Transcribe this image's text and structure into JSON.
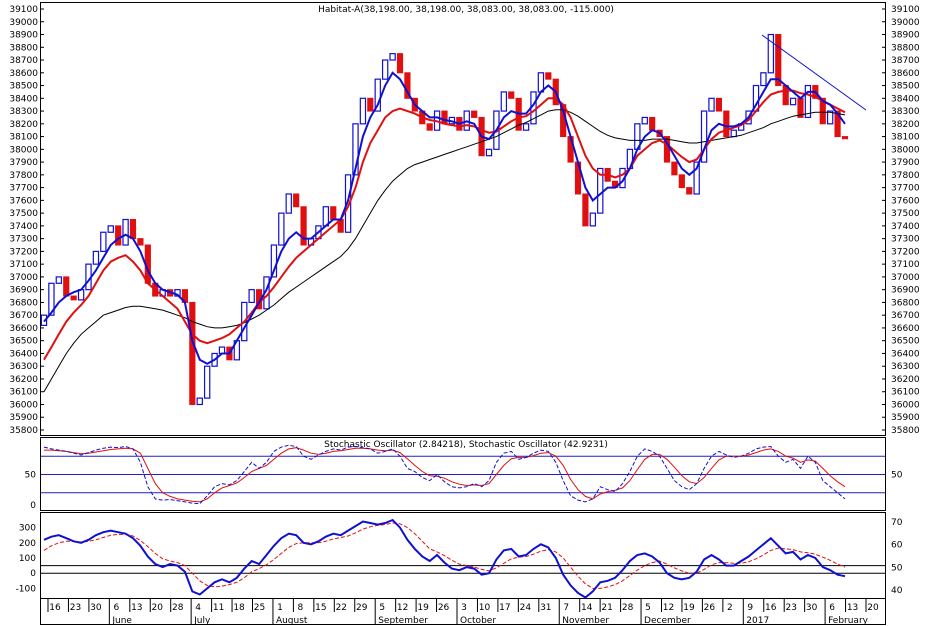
{
  "chart_data": {
    "type": "candlestick",
    "title": "Habitat-A(38,198.00, 38,198.00, 38,083.00, 38,083.00, -115.000)",
    "colors": {
      "up": "#1010d0",
      "down": "#e01010",
      "ma_fast": "#1010d0",
      "ma_mid": "#e01010",
      "ma_slow": "#000000",
      "stoch_fast": "#1010d0",
      "stoch_slow": "#e01010",
      "osc_main": "#1010d0",
      "osc_signal": "#e01010"
    },
    "price_panel": {
      "ylim": [
        35800,
        39100
      ],
      "y_ticks": [
        "39100",
        "39000",
        "38900",
        "38800",
        "38700",
        "38600",
        "38500",
        "38400",
        "38300",
        "38200",
        "38100",
        "38000",
        "37900",
        "37800",
        "37700",
        "37600",
        "37500",
        "37400",
        "37300",
        "37200",
        "37100",
        "37000",
        "36900",
        "36800",
        "36700",
        "36600",
        "36500",
        "36400",
        "36300",
        "36200",
        "36100",
        "36000",
        "35900",
        "35800"
      ],
      "closes": [
        36700,
        36950,
        37000,
        36850,
        36820,
        36900,
        37100,
        37200,
        37350,
        37400,
        37250,
        37450,
        37300,
        37250,
        36950,
        36850,
        36900,
        36850,
        36900,
        36800,
        36000,
        36050,
        36300,
        36400,
        36450,
        36350,
        36500,
        36800,
        36900,
        36750,
        37000,
        37250,
        37500,
        37650,
        37550,
        37250,
        37300,
        37400,
        37550,
        37450,
        37350,
        37800,
        38200,
        38400,
        38300,
        38550,
        38700,
        38750,
        38600,
        38400,
        38300,
        38200,
        38150,
        38300,
        38200,
        38250,
        38150,
        38300,
        38250,
        37950,
        38000,
        38300,
        38450,
        38400,
        38150,
        38200,
        38450,
        38600,
        38550,
        38350,
        38100,
        37900,
        37650,
        37400,
        37500,
        37850,
        37750,
        37700,
        37850,
        38000,
        38200,
        38250,
        38150,
        38100,
        37900,
        37800,
        37700,
        37650,
        37900,
        38300,
        38400,
        38300,
        38100,
        38150,
        38200,
        38300,
        38500,
        38600,
        38900,
        38500,
        38350,
        38400,
        38250,
        38500,
        38400,
        38200,
        38300,
        38100,
        38083
      ],
      "ma_fast": [
        36650,
        36720,
        36800,
        36850,
        36880,
        36900,
        36970,
        37050,
        37150,
        37250,
        37300,
        37330,
        37300,
        37200,
        37050,
        36950,
        36900,
        36880,
        36860,
        36800,
        36500,
        36350,
        36320,
        36350,
        36400,
        36400,
        36500,
        36600,
        36700,
        36800,
        36900,
        37050,
        37200,
        37300,
        37350,
        37300,
        37300,
        37350,
        37400,
        37450,
        37450,
        37600,
        37850,
        38100,
        38250,
        38350,
        38500,
        38600,
        38550,
        38450,
        38350,
        38300,
        38250,
        38250,
        38230,
        38220,
        38200,
        38220,
        38200,
        38100,
        38080,
        38150,
        38250,
        38300,
        38280,
        38280,
        38350,
        38450,
        38500,
        38450,
        38300,
        38100,
        37900,
        37700,
        37600,
        37650,
        37700,
        37700,
        37750,
        37850,
        38000,
        38100,
        38150,
        38130,
        38050,
        37950,
        37850,
        37800,
        37850,
        38000,
        38150,
        38200,
        38180,
        38180,
        38200,
        38250,
        38350,
        38450,
        38550,
        38550,
        38500,
        38450,
        38400,
        38450,
        38450,
        38380,
        38350,
        38280,
        38200
      ],
      "ma_mid": [
        36350,
        36450,
        36550,
        36650,
        36720,
        36780,
        36850,
        36950,
        37050,
        37120,
        37150,
        37170,
        37120,
        37050,
        36950,
        36900,
        36850,
        36800,
        36750,
        36650,
        36550,
        36500,
        36480,
        36500,
        36520,
        36550,
        36600,
        36650,
        36720,
        36800,
        36850,
        36920,
        37000,
        37080,
        37150,
        37200,
        37250,
        37300,
        37350,
        37400,
        37450,
        37550,
        37700,
        37900,
        38050,
        38150,
        38250,
        38300,
        38320,
        38300,
        38280,
        38250,
        38230,
        38220,
        38200,
        38190,
        38180,
        38190,
        38180,
        38150,
        38130,
        38140,
        38180,
        38220,
        38250,
        38260,
        38300,
        38350,
        38400,
        38400,
        38350,
        38250,
        38100,
        37950,
        37850,
        37800,
        37800,
        37780,
        37800,
        37850,
        37950,
        38000,
        38050,
        38070,
        38040,
        37990,
        37940,
        37900,
        37920,
        38000,
        38080,
        38130,
        38150,
        38170,
        38190,
        38230,
        38300,
        38370,
        38430,
        38450,
        38460,
        38460,
        38440,
        38430,
        38410,
        38380,
        38350,
        38320,
        38290
      ],
      "ma_slow": [
        36100,
        36200,
        36300,
        36400,
        36480,
        36550,
        36600,
        36650,
        36700,
        36720,
        36740,
        36760,
        36770,
        36770,
        36760,
        36750,
        36740,
        36720,
        36700,
        36680,
        36650,
        36630,
        36610,
        36600,
        36600,
        36610,
        36620,
        36640,
        36670,
        36700,
        36740,
        36780,
        36830,
        36880,
        36920,
        36960,
        37000,
        37040,
        37080,
        37120,
        37160,
        37220,
        37300,
        37400,
        37500,
        37600,
        37680,
        37750,
        37800,
        37850,
        37880,
        37900,
        37920,
        37940,
        37960,
        37980,
        38000,
        38020,
        38040,
        38060,
        38080,
        38100,
        38130,
        38160,
        38190,
        38210,
        38240,
        38270,
        38300,
        38310,
        38310,
        38290,
        38260,
        38220,
        38180,
        38140,
        38110,
        38090,
        38080,
        38070,
        38070,
        38070,
        38080,
        38080,
        38080,
        38070,
        38060,
        38050,
        38050,
        38060,
        38070,
        38080,
        38090,
        38100,
        38110,
        38130,
        38150,
        38170,
        38200,
        38220,
        38240,
        38260,
        38270,
        38280,
        38290,
        38290,
        38290,
        38280,
        38270
      ]
    },
    "stoch_panel": {
      "title": "Stochastic Oscillator (2.84218), Stochastic Oscillator (42.9231)",
      "ylim": [
        -5,
        105
      ],
      "y_ticks": [
        "50",
        "0"
      ],
      "right_ticks": [
        "50"
      ],
      "levels": [
        20,
        50,
        80
      ],
      "fast": [
        95,
        92,
        90,
        88,
        85,
        82,
        86,
        90,
        93,
        95,
        94,
        96,
        92,
        70,
        30,
        10,
        8,
        9,
        7,
        5,
        3,
        2,
        15,
        30,
        35,
        33,
        40,
        55,
        70,
        60,
        70,
        88,
        95,
        98,
        96,
        80,
        75,
        82,
        88,
        92,
        90,
        95,
        96,
        94,
        92,
        85,
        88,
        92,
        80,
        60,
        55,
        45,
        40,
        50,
        38,
        30,
        28,
        30,
        35,
        30,
        40,
        70,
        85,
        88,
        75,
        78,
        85,
        90,
        88,
        70,
        40,
        15,
        8,
        5,
        10,
        30,
        25,
        22,
        35,
        55,
        80,
        92,
        88,
        80,
        60,
        40,
        30,
        25,
        35,
        60,
        80,
        88,
        82,
        78,
        80,
        85,
        92,
        95,
        96,
        80,
        70,
        75,
        60,
        80,
        70,
        40,
        30,
        20,
        10
      ],
      "slow": [
        90,
        90,
        89,
        88,
        86,
        84,
        85,
        87,
        89,
        91,
        92,
        93,
        92,
        85,
        60,
        35,
        20,
        14,
        10,
        8,
        6,
        5,
        10,
        20,
        28,
        32,
        36,
        45,
        55,
        60,
        65,
        75,
        85,
        92,
        94,
        90,
        85,
        83,
        85,
        88,
        89,
        91,
        93,
        93,
        92,
        90,
        89,
        90,
        86,
        76,
        65,
        55,
        48,
        47,
        44,
        38,
        34,
        32,
        33,
        32,
        35,
        50,
        65,
        76,
        78,
        78,
        81,
        85,
        86,
        80,
        65,
        42,
        25,
        14,
        10,
        18,
        22,
        24,
        28,
        40,
        58,
        75,
        83,
        83,
        75,
        62,
        48,
        38,
        35,
        45,
        60,
        74,
        80,
        80,
        80,
        82,
        86,
        90,
        92,
        88,
        80,
        77,
        70,
        74,
        72,
        60,
        48,
        38,
        30
      ]
    },
    "osc_panel": {
      "ylim": [
        -150,
        350
      ],
      "y_ticks": [
        "300",
        "200",
        "100",
        "0",
        "-100"
      ],
      "right_ticks": [
        "70",
        "60",
        "50",
        "40"
      ],
      "level_values": [
        0,
        50
      ],
      "main": [
        220,
        240,
        250,
        230,
        210,
        200,
        220,
        250,
        270,
        280,
        270,
        260,
        230,
        180,
        110,
        60,
        40,
        60,
        50,
        10,
        -120,
        -140,
        -100,
        -60,
        -40,
        -60,
        -30,
        30,
        80,
        60,
        120,
        180,
        230,
        260,
        250,
        200,
        190,
        210,
        240,
        260,
        250,
        280,
        310,
        340,
        330,
        320,
        330,
        350,
        300,
        220,
        160,
        110,
        80,
        120,
        70,
        30,
        20,
        40,
        30,
        -10,
        0,
        90,
        150,
        160,
        110,
        120,
        160,
        190,
        170,
        100,
        -10,
        -80,
        -130,
        -160,
        -120,
        -60,
        -50,
        -30,
        20,
        80,
        120,
        130,
        110,
        70,
        0,
        -30,
        -40,
        -30,
        10,
        90,
        120,
        90,
        50,
        50,
        80,
        110,
        150,
        190,
        230,
        180,
        130,
        140,
        90,
        120,
        100,
        40,
        20,
        -10,
        -20
      ],
      "signal": [
        150,
        180,
        200,
        210,
        210,
        205,
        210,
        220,
        235,
        250,
        255,
        255,
        245,
        215,
        175,
        130,
        95,
        80,
        70,
        50,
        0,
        -50,
        -80,
        -90,
        -85,
        -75,
        -60,
        -30,
        10,
        30,
        55,
        90,
        130,
        170,
        195,
        200,
        200,
        200,
        210,
        225,
        235,
        245,
        265,
        290,
        305,
        315,
        320,
        330,
        325,
        300,
        260,
        210,
        160,
        140,
        115,
        85,
        60,
        50,
        40,
        25,
        15,
        35,
        65,
        95,
        105,
        110,
        125,
        145,
        155,
        140,
        100,
        40,
        -20,
        -70,
        -100,
        -100,
        -90,
        -75,
        -50,
        -15,
        20,
        50,
        70,
        80,
        60,
        35,
        15,
        0,
        0,
        25,
        55,
        70,
        70,
        65,
        65,
        75,
        95,
        120,
        150,
        165,
        160,
        155,
        140,
        135,
        125,
        105,
        85,
        60,
        40
      ]
    },
    "x_axis": {
      "day_ticks": [
        "16",
        "23",
        "30",
        "6",
        "13",
        "20",
        "28",
        "4",
        "11",
        "18",
        "25",
        "1",
        "8",
        "15",
        "22",
        "29",
        "5",
        "12",
        "19",
        "26",
        "3",
        "10",
        "17",
        "24",
        "31",
        "7",
        "14",
        "21",
        "28",
        "5",
        "12",
        "19",
        "26",
        "2",
        "9",
        "16",
        "23",
        "30",
        "6",
        "13",
        "20"
      ],
      "months": [
        "June",
        "July",
        "August",
        "September",
        "October",
        "November",
        "December",
        "2017",
        "February"
      ]
    }
  }
}
